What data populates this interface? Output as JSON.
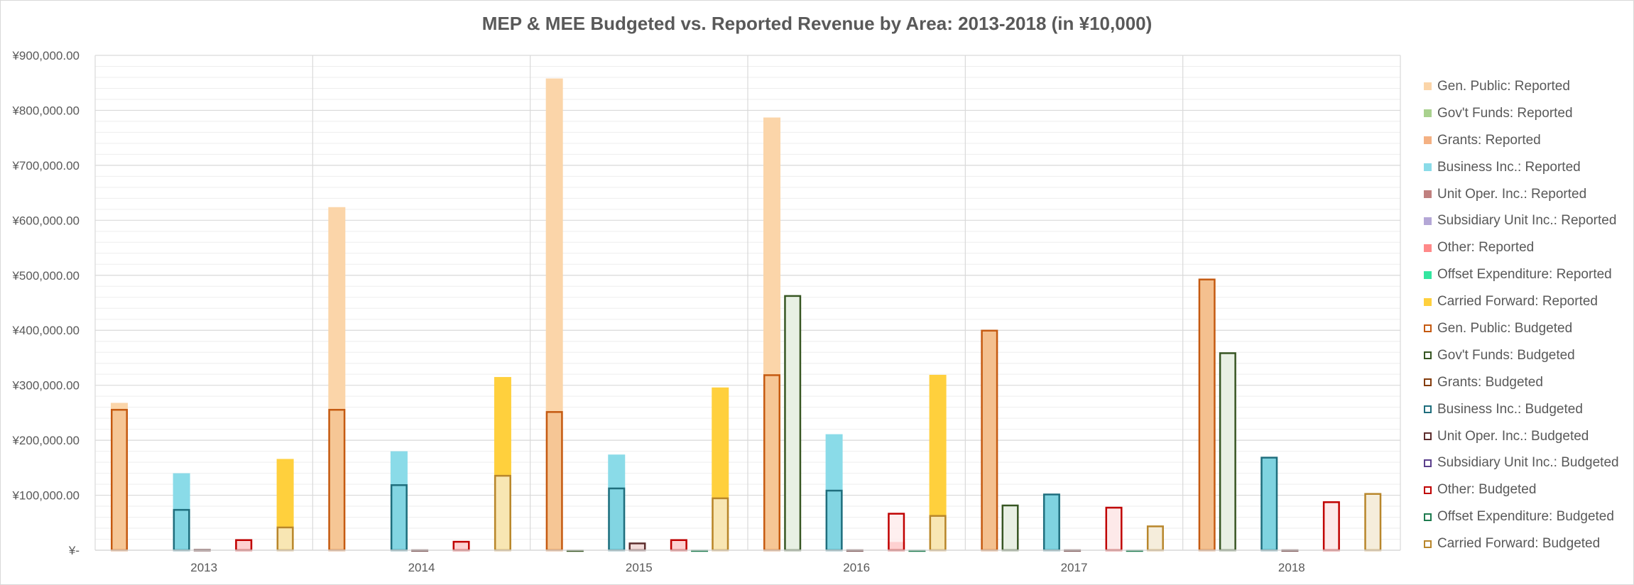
{
  "chart_data": {
    "type": "bar",
    "title": "MEP & MEE Budgeted vs. Reported Revenue by Area: 2013-2018 (in ¥10,000)",
    "xlabel": "",
    "ylabel": "",
    "categories": [
      "2013",
      "2014",
      "2015",
      "2016",
      "2017",
      "2018"
    ],
    "ylim": [
      0,
      900000
    ],
    "yticks": [
      0,
      100000,
      200000,
      300000,
      400000,
      500000,
      600000,
      700000,
      800000,
      900000
    ],
    "ytick_labels": [
      "¥-",
      "¥100,000.00",
      "¥200,000.00",
      "¥300,000.00",
      "¥400,000.00",
      "¥500,000.00",
      "¥600,000.00",
      "¥700,000.00",
      "¥800,000.00",
      "¥900,000.00"
    ],
    "grid": true,
    "legend_position": "right",
    "layout": "reported bars drawn filled behind budgeted bars (outlined) for each area",
    "areas": [
      "Gen. Public",
      "Gov't Funds",
      "Grants",
      "Business Inc.",
      "Unit Oper. Inc.",
      "Subsidiary Unit Inc.",
      "Other",
      "Offset Expenditure",
      "Carried Forward"
    ],
    "series": [
      {
        "name": "Gen. Public: Reported",
        "kind": "reported",
        "area_index": 0,
        "color": "#FBD5A9",
        "values": [
          268000,
          624000,
          858000,
          787000,
          0,
          0
        ]
      },
      {
        "name": "Gov't Funds: Reported",
        "kind": "reported",
        "area_index": 1,
        "color": "#A9D18E",
        "values": [
          0,
          0,
          0,
          0,
          0,
          0
        ]
      },
      {
        "name": "Grants: Reported",
        "kind": "reported",
        "area_index": 2,
        "color": "#F4B183",
        "values": [
          0,
          0,
          0,
          0,
          0,
          0
        ]
      },
      {
        "name": "Business Inc.: Reported",
        "kind": "reported",
        "area_index": 3,
        "color": "#8ADBE8",
        "values": [
          140000,
          180000,
          174000,
          211000,
          0,
          0
        ]
      },
      {
        "name": "Unit Oper. Inc.: Reported",
        "kind": "reported",
        "area_index": 4,
        "color": "#C0807F",
        "values": [
          0,
          0,
          0,
          0,
          0,
          0
        ]
      },
      {
        "name": "Subsidiary Unit Inc.: Reported",
        "kind": "reported",
        "area_index": 5,
        "color": "#B4A7D6",
        "values": [
          0,
          0,
          0,
          0,
          0,
          0
        ]
      },
      {
        "name": "Other: Reported",
        "kind": "reported",
        "area_index": 6,
        "color": "#FF8989",
        "values": [
          20000,
          16000,
          20000,
          15000,
          0,
          0
        ]
      },
      {
        "name": "Offset Expenditure: Reported",
        "kind": "reported",
        "area_index": 7,
        "color": "#33E6A0",
        "values": [
          0,
          0,
          0,
          0,
          0,
          0
        ]
      },
      {
        "name": "Carried Forward: Reported",
        "kind": "reported",
        "area_index": 8,
        "color": "#FFD03D",
        "values": [
          166000,
          315000,
          296000,
          319000,
          0,
          0
        ]
      },
      {
        "name": "Gen. Public: Budgeted",
        "kind": "budgeted",
        "area_index": 0,
        "color": "#C55A11",
        "fill": "#F4C08F",
        "values": [
          257000,
          257000,
          253000,
          320000,
          401000,
          494000
        ]
      },
      {
        "name": "Gov't Funds: Budgeted",
        "kind": "budgeted",
        "area_index": 1,
        "color": "#375623",
        "fill": "#E8F0E4",
        "values": [
          0,
          0,
          1000,
          464000,
          83000,
          360000
        ]
      },
      {
        "name": "Grants: Budgeted",
        "kind": "budgeted",
        "area_index": 2,
        "color": "#843C0C",
        "fill": "#F8CBAD",
        "values": [
          0,
          0,
          0,
          0,
          0,
          0
        ]
      },
      {
        "name": "Business Inc.: Budgeted",
        "kind": "budgeted",
        "area_index": 3,
        "color": "#1F6E7D",
        "fill": "#7FD3E0",
        "values": [
          75000,
          120000,
          114000,
          110000,
          103000,
          170000
        ]
      },
      {
        "name": "Unit Oper. Inc.: Budgeted",
        "kind": "budgeted",
        "area_index": 4,
        "color": "#5E2E2E",
        "fill": "#F2DCDB",
        "values": [
          2000,
          1500,
          14000,
          1500,
          1500,
          1500
        ]
      },
      {
        "name": "Subsidiary Unit Inc.: Budgeted",
        "kind": "budgeted",
        "area_index": 5,
        "color": "#5B3F8C",
        "fill": "#E4DFEC",
        "values": [
          0,
          0,
          0,
          0,
          0,
          0
        ]
      },
      {
        "name": "Other: Budgeted",
        "kind": "budgeted",
        "area_index": 6,
        "color": "#C00000",
        "fill": "#FDE9E9",
        "values": [
          20000,
          17000,
          20000,
          68000,
          79000,
          89000
        ]
      },
      {
        "name": "Offset Expenditure: Budgeted",
        "kind": "budgeted",
        "area_index": 7,
        "color": "#1E7B4F",
        "fill": "#E2F5EC",
        "values": [
          0,
          0,
          1000,
          1000,
          1000,
          0
        ]
      },
      {
        "name": "Carried Forward: Budgeted",
        "kind": "budgeted",
        "area_index": 8,
        "color": "#B8862B",
        "fill": "#F5EDDB",
        "values": [
          43000,
          137000,
          96000,
          64000,
          45000,
          104000
        ]
      }
    ]
  }
}
